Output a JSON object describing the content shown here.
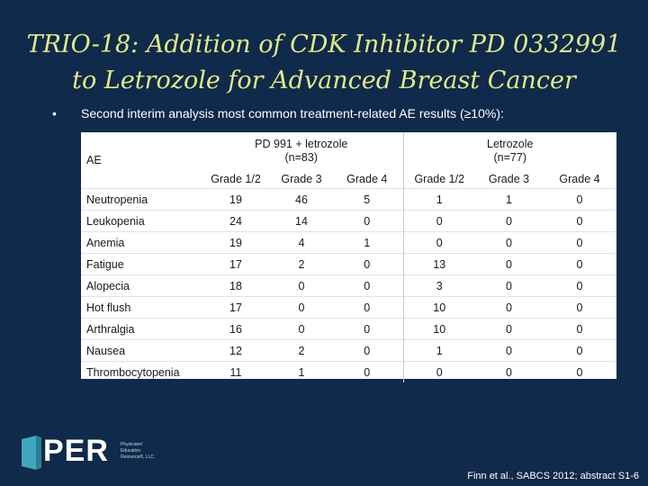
{
  "slide": {
    "title_line1": "TRIO-18: Addition of CDK Inhibitor PD 0332991",
    "title_line2": "to Letrozole for Advanced Breast Cancer",
    "bullet": "•",
    "subtitle": "Second interim analysis most common treatment-related AE results (≥10%):",
    "citation": "Finn et al., SABCS 2012; abstract S1-6"
  },
  "table": {
    "ae_header": "AE",
    "group1_line1": "PD 991 + letrozole",
    "group1_line2": "(n=83)",
    "group2_line1": "Letrozole",
    "group2_line2": "(n=77)",
    "grades": [
      "Grade 1/2",
      "Grade 3",
      "Grade 4",
      "Grade 1/2",
      "Grade 3",
      "Grade 4"
    ],
    "rows": [
      {
        "ae": "Neutropenia",
        "v": [
          "19",
          "46",
          "5",
          "1",
          "1",
          "0"
        ]
      },
      {
        "ae": "Leukopenia",
        "v": [
          "24",
          "14",
          "0",
          "0",
          "0",
          "0"
        ]
      },
      {
        "ae": "Anemia",
        "v": [
          "19",
          "4",
          "1",
          "0",
          "0",
          "0"
        ]
      },
      {
        "ae": "Fatigue",
        "v": [
          "17",
          "2",
          "0",
          "13",
          "0",
          "0"
        ]
      },
      {
        "ae": "Alopecia",
        "v": [
          "18",
          "0",
          "0",
          "3",
          "0",
          "0"
        ]
      },
      {
        "ae": "Hot flush",
        "v": [
          "17",
          "0",
          "0",
          "10",
          "0",
          "0"
        ]
      },
      {
        "ae": "Arthralgia",
        "v": [
          "16",
          "0",
          "0",
          "10",
          "0",
          "0"
        ]
      },
      {
        "ae": "Nausea",
        "v": [
          "12",
          "2",
          "0",
          "1",
          "0",
          "0"
        ]
      },
      {
        "ae": "Thrombocytopenia",
        "v": [
          "11",
          "1",
          "0",
          "0",
          "0",
          "0"
        ]
      }
    ]
  },
  "logo": {
    "text": "PER",
    "tagline_1": "Physicians'",
    "tagline_2": "Education",
    "tagline_3": "Resource®, LLC"
  },
  "colors": {
    "background": "#0f2a4a",
    "title": "#e2e98a",
    "logo_teal": "#3fa7bf"
  }
}
